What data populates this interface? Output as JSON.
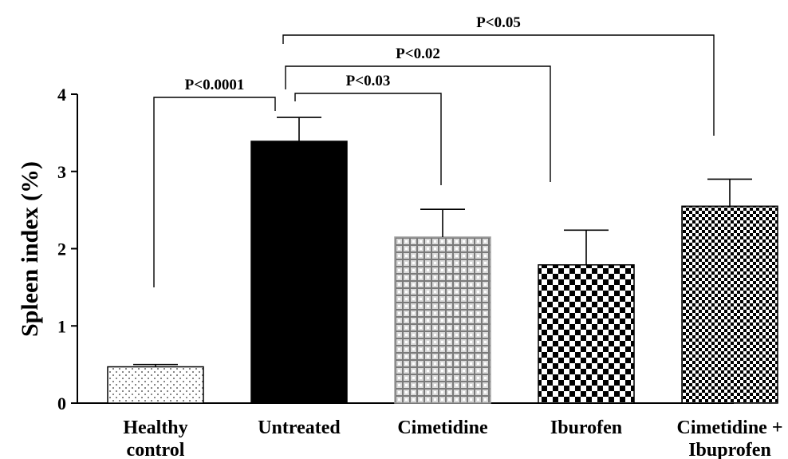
{
  "chart_data": {
    "type": "bar",
    "ylabel": "Spleen index (%)",
    "xlabel": "",
    "title": "",
    "ylim": [
      0,
      4
    ],
    "yticks": [
      "0",
      "1",
      "2",
      "3",
      "4"
    ],
    "grid": false,
    "categories": [
      {
        "line1": "Healthy",
        "line2": "control"
      },
      {
        "line1": "Untreated",
        "line2": ""
      },
      {
        "line1": "Cimetidine",
        "line2": ""
      },
      {
        "line1": "Iburofen",
        "line2": ""
      },
      {
        "line1": "Cimetidine +",
        "line2": "Ibuprofen"
      }
    ],
    "values": [
      0.47,
      3.39,
      2.15,
      1.79,
      2.55
    ],
    "error": [
      0.03,
      0.31,
      0.36,
      0.45,
      0.35
    ],
    "patterns": [
      "dots",
      "solid",
      "grid",
      "checker",
      "fine-checker"
    ],
    "comparisons": [
      {
        "label": "P<0.0001",
        "from": 0,
        "to": 1
      },
      {
        "label": "P<0.03",
        "from": 1,
        "to": 2
      },
      {
        "label": "P<0.02",
        "from": 1,
        "to": 3
      },
      {
        "label": "P<0.05",
        "from": 1,
        "to": 4
      }
    ]
  }
}
